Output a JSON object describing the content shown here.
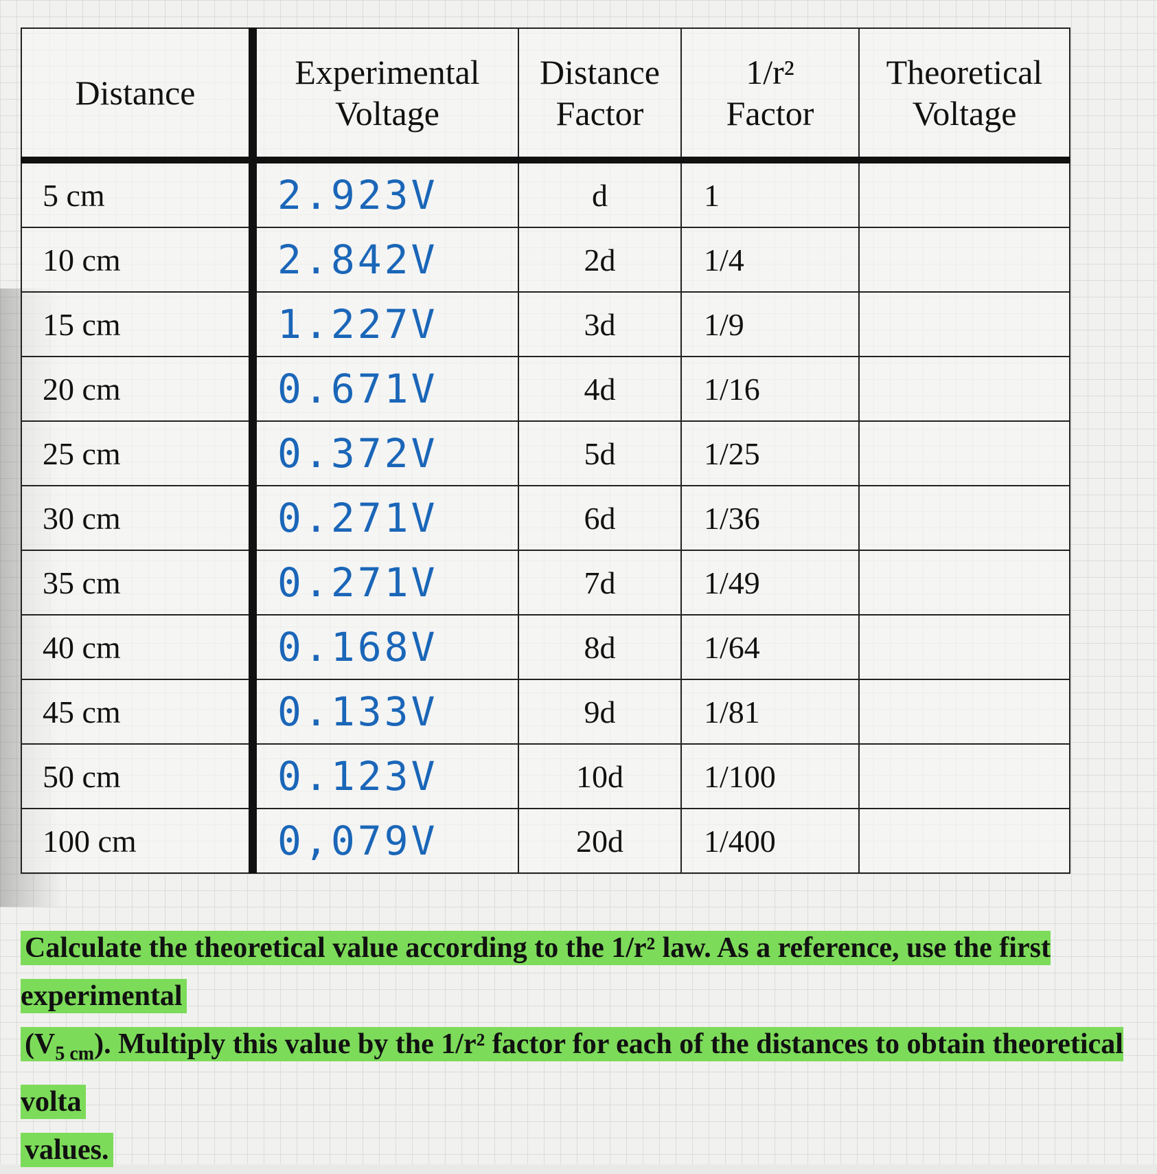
{
  "table": {
    "header": [
      [
        "Distance"
      ],
      [
        "Experimental",
        "Voltage"
      ],
      [
        "Distance",
        "Factor"
      ],
      [
        "1/r²",
        "Factor"
      ],
      [
        "Theoretical",
        "Voltage"
      ]
    ],
    "rows": [
      [
        "5 cm",
        "2.923V",
        "d",
        "1"
      ],
      [
        "10 cm",
        "2.842V",
        "2d",
        "1/4"
      ],
      [
        "15 cm",
        "1.227V",
        "3d",
        "1/9"
      ],
      [
        "20 cm",
        "0.671V",
        "4d",
        "1/16"
      ],
      [
        "25 cm",
        "0.372V",
        "5d",
        "1/25"
      ],
      [
        "30 cm",
        "0.271V",
        "6d",
        "1/36"
      ],
      [
        "35 cm",
        "0.271V",
        "7d",
        "1/49"
      ],
      [
        "40 cm",
        "0.168V",
        "8d",
        "1/64"
      ],
      [
        "45 cm",
        "0.133V",
        "9d",
        "1/81"
      ],
      [
        "50 cm",
        "0.123V",
        "10d",
        "1/100"
      ],
      [
        "100 cm",
        "0,079V",
        "20d",
        "1/400"
      ]
    ]
  },
  "instruction": {
    "line1": "Calculate the theoretical value according to the 1/r² law. As a reference, use the first experimental",
    "line2": [
      "(V",
      "5 cm",
      "). Multiply this value by the 1/r² factor for each of the distances to obtain theoretical volta"
    ],
    "line3": "values."
  }
}
